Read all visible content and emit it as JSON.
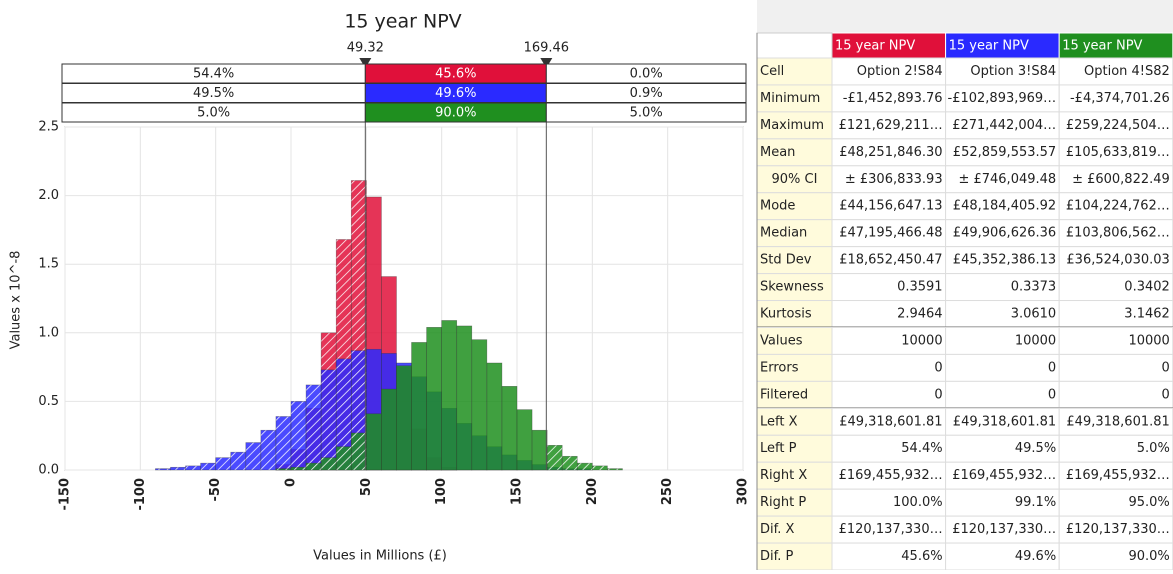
{
  "chart_data": {
    "type": "histogram",
    "title": "15 year NPV",
    "x_label": "Values in Millions (£)",
    "y_label": "Values x 10^-8",
    "bins": [
      -110,
      -100,
      -90,
      -80,
      -70,
      -60,
      -50,
      -40,
      -30,
      -20,
      -10,
      0,
      10,
      20,
      30,
      40,
      50,
      60,
      70,
      80,
      90,
      100,
      110,
      120,
      130,
      140,
      150,
      160,
      170,
      180,
      190,
      200,
      210,
      220,
      230,
      240,
      250,
      260,
      270,
      280
    ],
    "series": [
      {
        "name": "Option 2!S84",
        "color": "#e0103a",
        "values": [
          0,
          0,
          0,
          0,
          0,
          0,
          0,
          0,
          0,
          0,
          0.04,
          0.15,
          0.45,
          1.0,
          1.68,
          2.11,
          1.99,
          1.41,
          0.75,
          0.3,
          0.09,
          0.02,
          0,
          0,
          0,
          0,
          0,
          0,
          0,
          0,
          0,
          0,
          0,
          0,
          0,
          0,
          0,
          0,
          0
        ]
      },
      {
        "name": "Option 3!S84",
        "color": "#2a2aff",
        "values": [
          0,
          0,
          0.01,
          0.02,
          0.03,
          0.05,
          0.09,
          0.13,
          0.2,
          0.29,
          0.39,
          0.5,
          0.62,
          0.73,
          0.81,
          0.87,
          0.88,
          0.85,
          0.78,
          0.68,
          0.57,
          0.45,
          0.34,
          0.25,
          0.17,
          0.11,
          0.07,
          0.04,
          0.02,
          0.01,
          0.01,
          0,
          0,
          0,
          0,
          0,
          0,
          0,
          0
        ]
      },
      {
        "name": "Option 4!S82",
        "color": "#1f8f1f",
        "values": [
          0,
          0,
          0,
          0,
          0,
          0,
          0,
          0,
          0,
          0,
          0.01,
          0.02,
          0.05,
          0.09,
          0.17,
          0.27,
          0.41,
          0.59,
          0.76,
          0.93,
          1.04,
          1.09,
          1.05,
          0.95,
          0.78,
          0.61,
          0.44,
          0.29,
          0.18,
          0.1,
          0.05,
          0.03,
          0.01,
          0,
          0,
          0,
          0,
          0,
          0
        ]
      }
    ],
    "xlim": [
      -150,
      300
    ],
    "xticks": [
      -150,
      -100,
      -50,
      0,
      50,
      100,
      150,
      200,
      250,
      300
    ],
    "ylim": [
      0,
      2.5
    ],
    "yticks": [
      {
        "value": 0,
        "label": "0.0"
      },
      0.5,
      {
        "value": 1,
        "label": "1.0"
      },
      1.5,
      {
        "value": 2,
        "label": "2.0"
      },
      2.5
    ],
    "grid": true,
    "delimiters": [
      49.32,
      169.46
    ],
    "probability_rows": [
      [
        "54.4%",
        "45.6%",
        "0.0%"
      ],
      [
        "49.5%",
        "49.6%",
        "0.9%"
      ],
      [
        "5.0%",
        "90.0%",
        "5.0%"
      ]
    ]
  },
  "table": {
    "header": [
      "15 year NPV",
      "15 year NPV",
      "15 year NPV"
    ],
    "rows": [
      [
        "Cell",
        "Option 2!S84",
        "Option 3!S84",
        "Option 4!S82"
      ],
      [
        "Minimum",
        "-£1,452,893.76",
        "-£102,893,969…",
        "-£4,374,701.26"
      ],
      [
        "Maximum",
        "£121,629,211…",
        "£271,442,004…",
        "£259,224,504…"
      ],
      [
        "Mean",
        "£48,251,846.30",
        "£52,859,553.57",
        "£105,633,819…"
      ],
      [
        "90% CI",
        "± £306,833.93",
        "± £746,049.48",
        "± £600,822.49"
      ],
      [
        "Mode",
        "£44,156,647.13",
        "£48,184,405.92",
        "£104,224,762…"
      ],
      [
        "Median",
        "£47,195,466.48",
        "£49,906,626.36",
        "£103,806,562…"
      ],
      [
        "Std Dev",
        "£18,652,450.47",
        "£45,352,386.13",
        "£36,524,030.03"
      ],
      [
        "Skewness",
        "0.3591",
        "0.3373",
        "0.3402"
      ],
      [
        "Kurtosis",
        "2.9464",
        "3.0610",
        "3.1462"
      ],
      [
        "Values",
        "10000",
        "10000",
        "10000"
      ],
      [
        "Errors",
        "0",
        "0",
        "0"
      ],
      [
        "Filtered",
        "0",
        "0",
        "0"
      ],
      [
        "Left X",
        "£49,318,601.81",
        "£49,318,601.81",
        "£49,318,601.81"
      ],
      [
        "Left P",
        "54.4%",
        "49.5%",
        "5.0%"
      ],
      [
        "Right X",
        "£169,455,932…",
        "£169,455,932…",
        "£169,455,932…"
      ],
      [
        "Right P",
        "100.0%",
        "99.1%",
        "95.0%"
      ],
      [
        "Dif. X",
        "£120,137,330…",
        "£120,137,330…",
        "£120,137,330…"
      ],
      [
        "Dif. P",
        "45.6%",
        "49.6%",
        "90.0%"
      ]
    ]
  }
}
